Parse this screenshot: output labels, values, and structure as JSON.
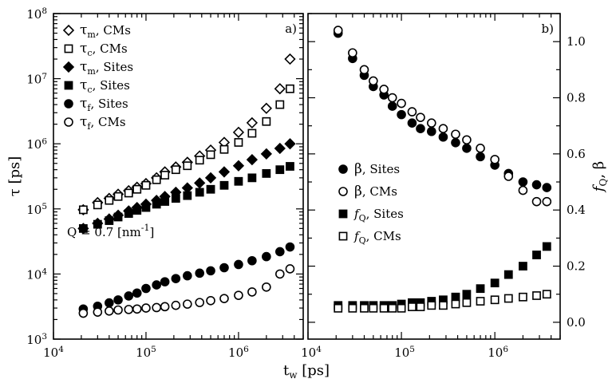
{
  "chart_data": [
    {
      "type": "scatter",
      "panel_label": "a)",
      "annotation": "Q = 0.7 [nm⁻¹]",
      "xlabel": "t_w [ps]",
      "ylabel": "τ [ps]",
      "x_scale": "log",
      "y_scale": "log",
      "xlim": [
        10000,
        5000000
      ],
      "ylim": [
        1000,
        100000000
      ],
      "x_ticks": [
        "10^4",
        "10^5",
        "10^6"
      ],
      "y_ticks": [
        "10^3",
        "10^4",
        "10^5",
        "10^6",
        "10^7",
        "10^8"
      ],
      "legend_position": "top-left",
      "x": [
        21000,
        30000,
        40000,
        50000,
        65000,
        80000,
        100000,
        130000,
        160000,
        210000,
        280000,
        380000,
        500000,
        700000,
        1000000,
        1400000,
        2000000,
        2800000,
        3600000
      ],
      "series": [
        {
          "name": "τm, CMs",
          "marker": "open-diamond",
          "values": [
            97000,
            125000,
            145000,
            168000,
            190000,
            215000,
            245000,
            300000,
            370000,
            440000,
            520000,
            650000,
            800000,
            1050000,
            1500000,
            2100000,
            3500000,
            7000000,
            20000000
          ]
        },
        {
          "name": "τc, CMs",
          "marker": "open-square",
          "values": [
            97000,
            115000,
            135000,
            155000,
            175000,
            200000,
            230000,
            280000,
            330000,
            400000,
            460000,
            560000,
            680000,
            820000,
            1050000,
            1450000,
            2200000,
            4000000,
            7000000
          ]
        },
        {
          "name": "τm, Sites",
          "marker": "filled-diamond",
          "values": [
            50000,
            60000,
            70000,
            80000,
            93000,
            105000,
            118000,
            135000,
            155000,
            180000,
            210000,
            250000,
            300000,
            370000,
            460000,
            570000,
            700000,
            850000,
            1000000
          ]
        },
        {
          "name": "τc, Sites",
          "marker": "filled-square",
          "values": [
            50000,
            58000,
            66000,
            75000,
            85000,
            95000,
            105000,
            118000,
            130000,
            145000,
            160000,
            180000,
            200000,
            230000,
            265000,
            300000,
            350000,
            400000,
            450000
          ]
        },
        {
          "name": "τf, Sites",
          "marker": "filled-circle",
          "values": [
            2900,
            3200,
            3600,
            4000,
            4600,
            5100,
            6000,
            6800,
            7600,
            8500,
            9400,
            10300,
            11200,
            12500,
            14000,
            16000,
            18500,
            22000,
            26000
          ]
        },
        {
          "name": "τf, CMs",
          "marker": "open-circle",
          "values": [
            2500,
            2600,
            2700,
            2800,
            2850,
            2900,
            3000,
            3050,
            3150,
            3300,
            3450,
            3650,
            3900,
            4200,
            4700,
            5300,
            6300,
            10000,
            12000
          ]
        }
      ]
    },
    {
      "type": "scatter",
      "panel_label": "b)",
      "xlabel": "t_w [ps]",
      "ylabel": "f_Q, β",
      "x_scale": "log",
      "y_scale": "linear",
      "xlim": [
        10000,
        5000000
      ],
      "ylim": [
        -0.06,
        1.1
      ],
      "x_ticks": [
        "10^4",
        "10^5",
        "10^6"
      ],
      "y_ticks": [
        "0.0",
        "0.2",
        "0.4",
        "0.6",
        "0.8",
        "1.0"
      ],
      "legend_position": "center-left",
      "x": [
        21000,
        30000,
        40000,
        50000,
        65000,
        80000,
        100000,
        130000,
        160000,
        210000,
        280000,
        380000,
        500000,
        700000,
        1000000,
        1400000,
        2000000,
        2800000,
        3600000
      ],
      "series": [
        {
          "name": "β, Sites",
          "marker": "filled-circle",
          "values": [
            1.03,
            0.94,
            0.88,
            0.84,
            0.81,
            0.77,
            0.74,
            0.71,
            0.69,
            0.68,
            0.66,
            0.64,
            0.62,
            0.59,
            0.56,
            0.53,
            0.5,
            0.49,
            0.48
          ]
        },
        {
          "name": "β, CMs",
          "marker": "open-circle",
          "values": [
            1.04,
            0.96,
            0.9,
            0.86,
            0.83,
            0.8,
            0.78,
            0.75,
            0.73,
            0.71,
            0.69,
            0.67,
            0.65,
            0.62,
            0.58,
            0.52,
            0.47,
            0.43,
            0.43
          ]
        },
        {
          "name": "fQ, Sites",
          "marker": "filled-square",
          "values": [
            0.06,
            0.06,
            0.06,
            0.06,
            0.06,
            0.06,
            0.065,
            0.07,
            0.07,
            0.075,
            0.08,
            0.09,
            0.1,
            0.12,
            0.14,
            0.17,
            0.2,
            0.24,
            0.27
          ]
        },
        {
          "name": "fQ, CMs",
          "marker": "open-square",
          "values": [
            0.05,
            0.05,
            0.05,
            0.05,
            0.05,
            0.05,
            0.05,
            0.055,
            0.055,
            0.06,
            0.06,
            0.065,
            0.07,
            0.075,
            0.08,
            0.085,
            0.09,
            0.095,
            0.1
          ]
        }
      ]
    }
  ]
}
